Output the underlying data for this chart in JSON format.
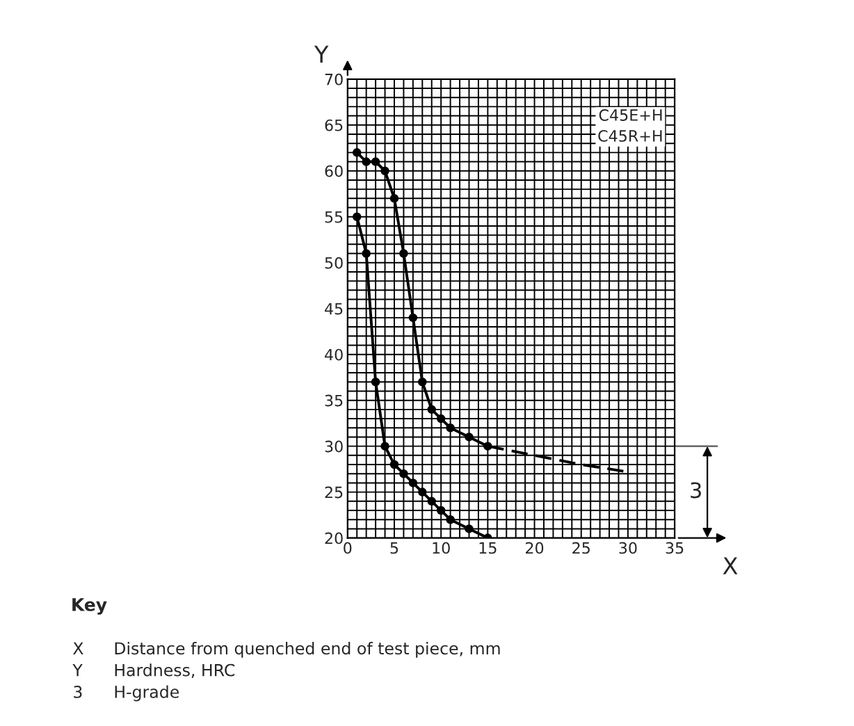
{
  "chart_data": {
    "type": "line",
    "xlabel": "X",
    "ylabel": "Y",
    "xlim": [
      0,
      35
    ],
    "ylim": [
      20,
      70
    ],
    "xticks": [
      0,
      5,
      10,
      15,
      20,
      25,
      30,
      35
    ],
    "yticks": [
      20,
      25,
      30,
      35,
      40,
      45,
      50,
      55,
      60,
      65,
      70
    ],
    "grid": true,
    "marker": "circle",
    "line_style": "solid",
    "series": [
      {
        "color": "#000000",
        "x": [
          1,
          2,
          3,
          4,
          5,
          6,
          7,
          8,
          9,
          10,
          11,
          13,
          15
        ],
        "values": [
          62,
          61,
          61,
          60,
          57,
          51,
          44,
          37,
          34,
          33,
          32,
          31,
          30
        ]
      },
      {
        "color": "#000000",
        "marker": "none",
        "line_style": "dashed",
        "x": [
          15,
          20,
          25,
          30
        ],
        "values": [
          30,
          29,
          28,
          27.2
        ]
      },
      {
        "color": "#000000",
        "x": [
          1,
          2,
          3,
          4,
          5,
          6,
          7,
          8,
          9,
          10,
          11,
          13,
          15
        ],
        "values": [
          55,
          51,
          37,
          30,
          28,
          27,
          26,
          25,
          24,
          23,
          22,
          21,
          20
        ]
      }
    ],
    "annotations": [
      "C45E+H\nC45R+H",
      "3",
      "Key",
      "X\tDistance from quenched end of test piece, mm",
      "Y\tHardness, HRC",
      "3\tH-grade"
    ]
  }
}
